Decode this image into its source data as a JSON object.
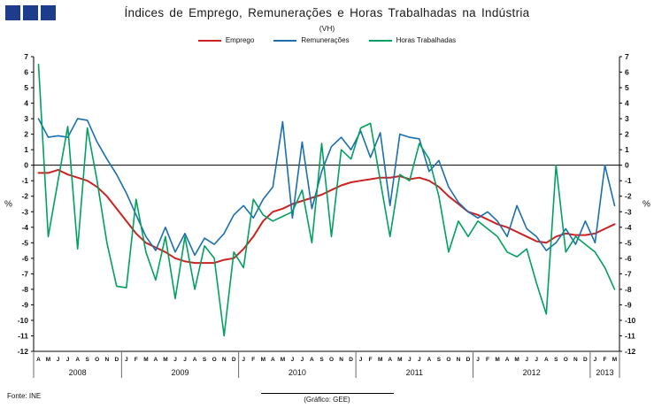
{
  "header": {
    "title": "Índices de Emprego, Remunerações e Horas Trabalhadas na Indústria",
    "subtitle": "(VH)",
    "logo_color": "#1e3c8c"
  },
  "footer": {
    "source": "Fonte: INE",
    "credit": "(Gráfico: GEE)"
  },
  "chart_data": {
    "type": "line",
    "title": "Índices de Emprego, Remunerações e Horas Trabalhadas na Indústria (VH)",
    "xlabel": "",
    "ylabel": "%",
    "ylim": [
      -12,
      7
    ],
    "grid": "zero-line-only",
    "legend_position": "top-center",
    "x_labels": [
      "A",
      "M",
      "J",
      "J",
      "A",
      "S",
      "O",
      "N",
      "D",
      "J",
      "F",
      "M",
      "A",
      "M",
      "J",
      "J",
      "A",
      "S",
      "O",
      "N",
      "D",
      "J",
      "F",
      "M",
      "A",
      "M",
      "J",
      "J",
      "A",
      "S",
      "O",
      "N",
      "D",
      "J",
      "F",
      "M",
      "A",
      "M",
      "J",
      "J",
      "A",
      "S",
      "O",
      "N",
      "D",
      "J",
      "F",
      "M",
      "A",
      "M",
      "J",
      "J",
      "A",
      "S",
      "O",
      "N",
      "D",
      "J",
      "F",
      "M"
    ],
    "year_groups": [
      {
        "label": "2008",
        "count": 9
      },
      {
        "label": "2009",
        "count": 12
      },
      {
        "label": "2010",
        "count": 12
      },
      {
        "label": "2011",
        "count": 12
      },
      {
        "label": "2012",
        "count": 12
      },
      {
        "label": "2013",
        "count": 3
      }
    ],
    "series": [
      {
        "name": "Emprego",
        "color": "#cc2222",
        "width": 2,
        "values": [
          -0.5,
          -0.5,
          -0.3,
          -0.6,
          -0.8,
          -1.0,
          -1.4,
          -2.0,
          -2.8,
          -3.6,
          -4.4,
          -5.0,
          -5.3,
          -5.6,
          -6.0,
          -6.2,
          -6.3,
          -6.3,
          -6.3,
          -6.1,
          -6.0,
          -5.4,
          -4.6,
          -3.6,
          -3.0,
          -2.8,
          -2.5,
          -2.3,
          -2.1,
          -1.9,
          -1.6,
          -1.3,
          -1.1,
          -1.0,
          -0.9,
          -0.8,
          -0.8,
          -0.7,
          -0.9,
          -0.8,
          -1.0,
          -1.4,
          -2.0,
          -2.5,
          -3.0,
          -3.2,
          -3.5,
          -3.8,
          -4.0,
          -4.3,
          -4.6,
          -4.9,
          -5.0,
          -4.6,
          -4.4,
          -4.5,
          -4.5,
          -4.4,
          -4.1,
          -3.8
        ]
      },
      {
        "name": "Remunerações",
        "color": "#1b6fae",
        "width": 1.6,
        "values": [
          3.0,
          1.8,
          1.9,
          1.8,
          3.0,
          2.9,
          1.5,
          0.4,
          -0.6,
          -1.8,
          -3.2,
          -4.6,
          -5.5,
          -4.0,
          -5.6,
          -4.4,
          -5.8,
          -4.7,
          -5.1,
          -4.4,
          -3.2,
          -2.6,
          -3.4,
          -2.2,
          -1.4,
          2.8,
          -3.4,
          1.5,
          -2.8,
          -0.4,
          1.2,
          1.8,
          1.0,
          2.2,
          0.5,
          2.1,
          -2.6,
          2.0,
          1.8,
          1.7,
          -0.4,
          0.3,
          -1.4,
          -2.4,
          -3.0,
          -3.4,
          -3.0,
          -3.6,
          -4.6,
          -2.6,
          -4.1,
          -4.6,
          -5.5,
          -5.0,
          -4.1,
          -5.1,
          -3.6,
          -5.0,
          0.0,
          -2.6
        ]
      },
      {
        "name": "Horas Trabalhadas",
        "color": "#00a15f",
        "width": 1.6,
        "values": [
          6.5,
          -4.6,
          -1.0,
          2.5,
          -5.4,
          2.4,
          -1.0,
          -5.0,
          -7.8,
          -7.9,
          -2.2,
          -5.6,
          -7.4,
          -4.6,
          -8.6,
          -4.6,
          -8.0,
          -5.2,
          -6.0,
          -11.0,
          -5.6,
          -6.6,
          -2.2,
          -3.2,
          -3.6,
          -3.3,
          -3.0,
          -1.6,
          -5.0,
          1.4,
          -4.6,
          1.0,
          0.4,
          2.4,
          2.7,
          -1.0,
          -4.6,
          -0.6,
          -1.0,
          1.4,
          0.4,
          -2.0,
          -5.6,
          -3.6,
          -4.6,
          -3.6,
          -4.1,
          -4.6,
          -5.6,
          -5.9,
          -5.4,
          -7.6,
          -9.6,
          0.0,
          -5.6,
          -4.6,
          -5.1,
          -5.6,
          -6.6,
          -8.0
        ]
      }
    ]
  }
}
